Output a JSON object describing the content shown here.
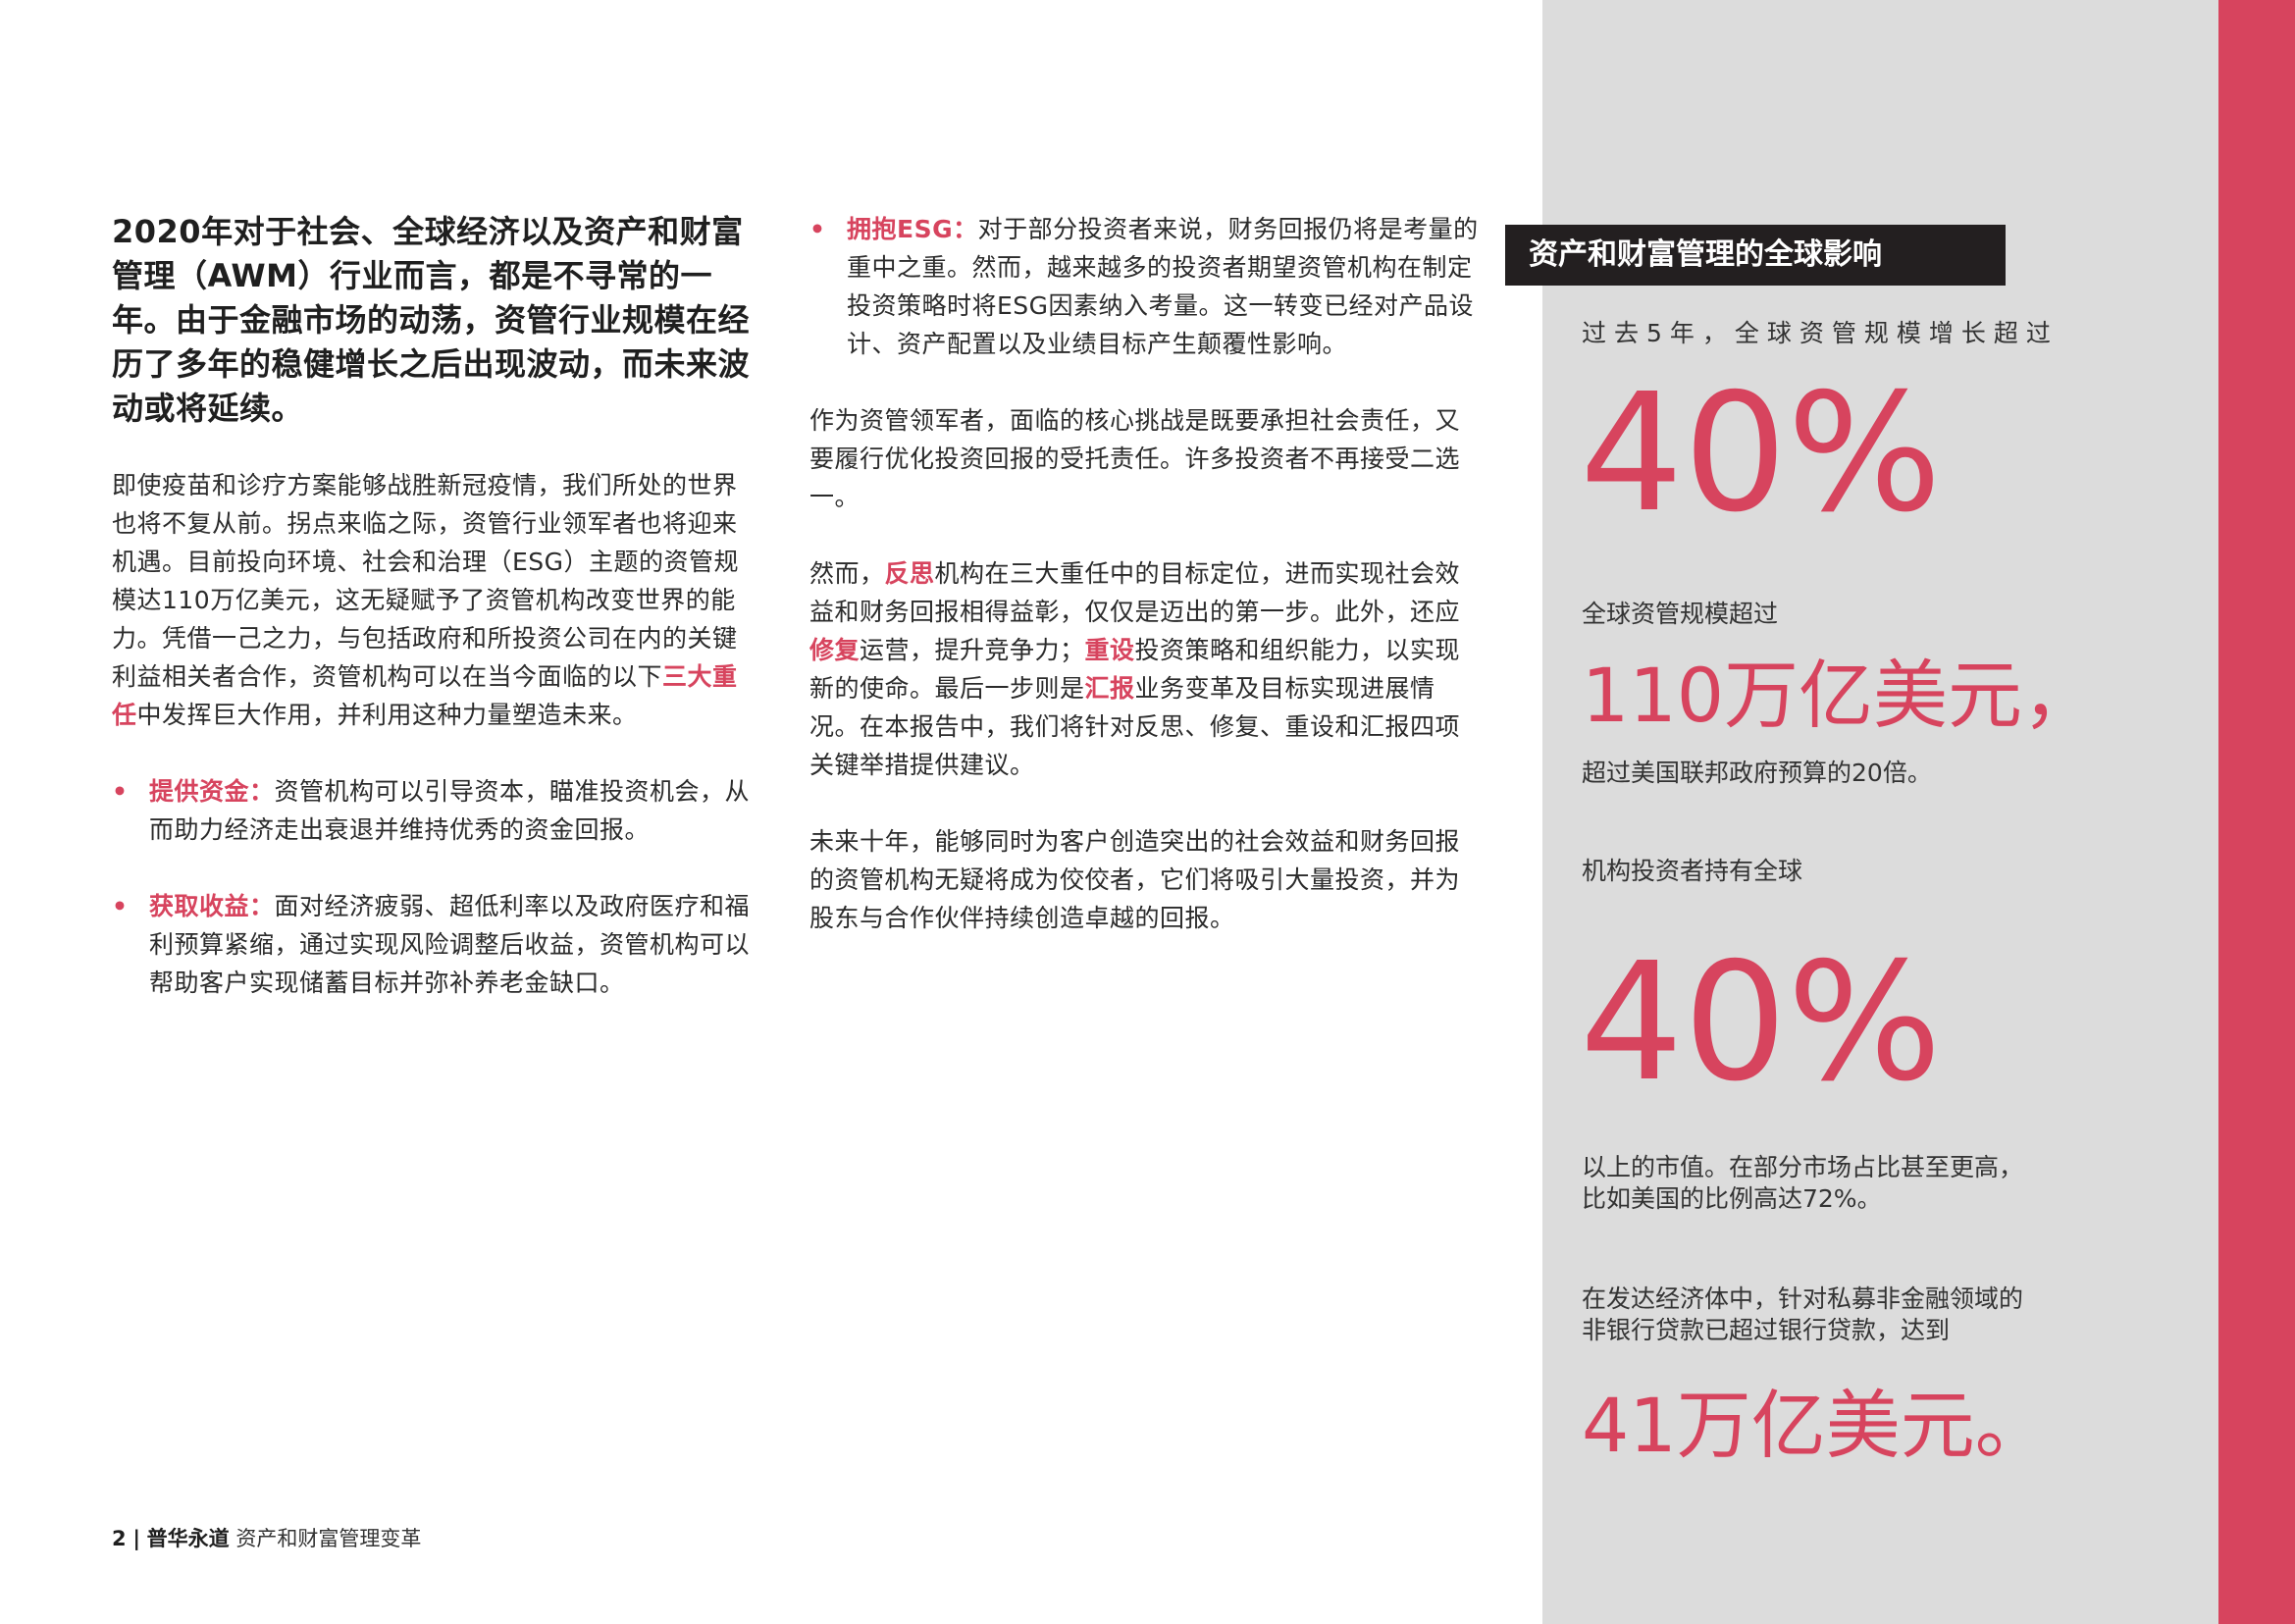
{
  "col1": {
    "lead": "2020年对于社会、全球经济以及资产和财富管理（AWM）行业而言，都是不寻常的一年。由于金融市场的动荡，资管行业规模在经历了多年的稳健增长之后出现波动，而未来波动或将延续。",
    "para1_a": "即使疫苗和诊疗方案能够战胜新冠疫情，我们所处的世界也将不复从前。拐点来临之际，资管行业领军者也将迎来机遇。目前投向环境、社会和治理（ESG）主题的资管规模达110万亿美元，这无疑赋予了资管机构改变世界的能力。凭借一己之力，与包括政府和所投资公司在内的关键利益相关者合作，资管机构可以在当今面临的以下",
    "para1_hl": "三大重任",
    "para1_b": "中发挥巨大作用，并利用这种力量塑造未来。",
    "bullets": [
      {
        "title": "提供资金：",
        "text": "资管机构可以引导资本，瞄准投资机会，从而助力经济走出衰退并维持优秀的资金回报。"
      },
      {
        "title": "获取收益：",
        "text": "面对经济疲弱、超低利率以及政府医疗和福利预算紧缩，通过实现风险调整后收益，资管机构可以帮助客户实现储蓄目标并弥补养老金缺口。"
      }
    ]
  },
  "col2": {
    "bullet": {
      "title": "拥抱ESG：",
      "text": "对于部分投资者来说，财务回报仍将是考量的重中之重。然而，越来越多的投资者期望资管机构在制定投资策略时将ESG因素纳入考量。这一转变已经对产品设计、资产配置以及业绩目标产生颠覆性影响。"
    },
    "para1": "作为资管领军者，面临的核心挑战是既要承担社会责任，又要履行优化投资回报的受托责任。许多投资者不再接受二选一。",
    "para2": {
      "t1": "然而，",
      "h1": "反思",
      "t2": "机构在三大重任中的目标定位，进而实现社会效益和财务回报相得益彰，仅仅是迈出的第一步。此外，还应",
      "h2": "修复",
      "t3": "运营，提升竞争力；",
      "h3": "重设",
      "t4": "投资策略和组织能力，以实现新的使命。最后一步则是",
      "h4": "汇报",
      "t5": "业务变革及目标实现进展情况。在本报告中，我们将针对反思、修复、重设和汇报四项关键举措提供建议。"
    },
    "para3": "未来十年，能够同时为客户创造突出的社会效益和财务回报的资管机构无疑将成为佼佼者，它们将吸引大量投资，并为股东与合作伙伴持续创造卓越的回报。"
  },
  "sidebar": {
    "title": "资产和财富管理的全球影响",
    "s1_label": "过去5年，全球资管规模增长超过",
    "s1_value": "40%",
    "s2_label": "全球资管规模超过",
    "s2_value": "110万亿美元，",
    "s2_note": "超过美国联邦政府预算的20倍。",
    "s3_label": "机构投资者持有全球",
    "s3_value": "40%",
    "s3_note_1": "以上的市值。在部分市场占比甚至更高，",
    "s3_note_2": "比如美国的比例高达72%。",
    "s4_label_1": "在发达经济体中，针对私募非金融领域的",
    "s4_label_2": "非银行贷款已超过银行贷款，达到",
    "s4_value": "41万亿美元。"
  },
  "footer": {
    "page": "2",
    "sep": "|",
    "brand": "普华永道",
    "title": "资产和财富管理变革"
  }
}
